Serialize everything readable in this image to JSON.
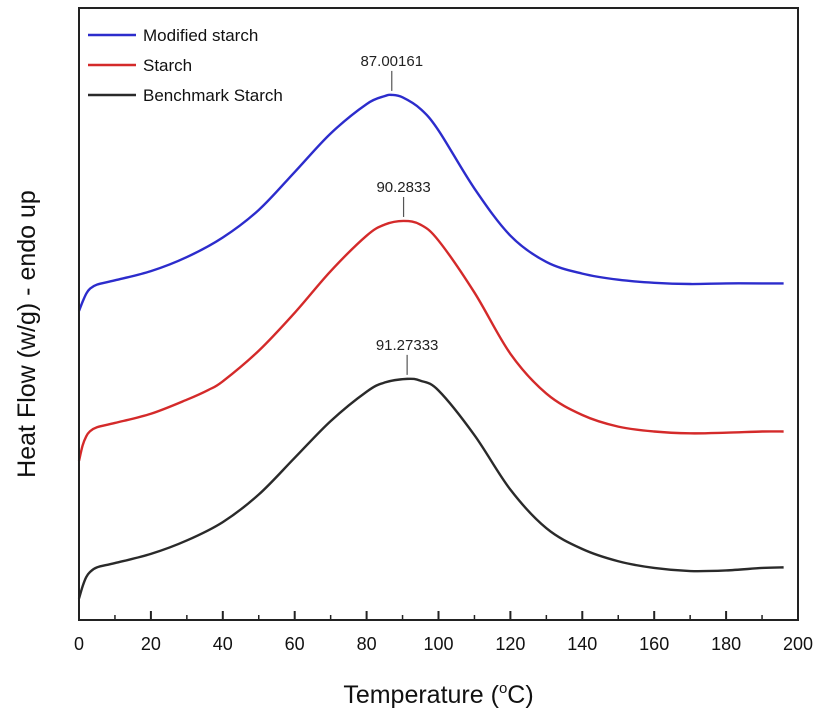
{
  "chart_data": {
    "type": "line",
    "xlabel": "Temperature (°C)",
    "xlabel_parts": {
      "main": "Temperature (",
      "sup": "o",
      "unit": "C)"
    },
    "ylabel": "Heat Flow (w/g) - endo up",
    "xlim": [
      0,
      200
    ],
    "x_ticks": [
      "0",
      "20",
      "40",
      "60",
      "80",
      "100",
      "120",
      "140",
      "160",
      "180",
      "200"
    ],
    "y_ticks": [],
    "ylim": [
      0,
      100
    ],
    "grid": false,
    "legend_position": "top-left",
    "series": [
      {
        "name": "Modified starch",
        "color": "#2c2ccc",
        "points": [
          [
            0,
            50.5
          ],
          [
            1,
            52.0
          ],
          [
            2,
            53.3
          ],
          [
            3,
            54.1
          ],
          [
            5,
            54.8
          ],
          [
            10,
            55.5
          ],
          [
            20,
            57.0
          ],
          [
            30,
            59.3
          ],
          [
            40,
            62.5
          ],
          [
            50,
            67.0
          ],
          [
            60,
            73.2
          ],
          [
            70,
            79.5
          ],
          [
            80,
            84.3
          ],
          [
            85,
            85.6
          ],
          [
            87.00161,
            85.8
          ],
          [
            90,
            85.4
          ],
          [
            95,
            83.5
          ],
          [
            100,
            80.0
          ],
          [
            110,
            70.5
          ],
          [
            120,
            62.8
          ],
          [
            130,
            58.5
          ],
          [
            140,
            56.6
          ],
          [
            150,
            55.6
          ],
          [
            160,
            55.1
          ],
          [
            170,
            54.9
          ],
          [
            180,
            55.0
          ],
          [
            190,
            55.0
          ],
          [
            196,
            55.0
          ]
        ],
        "peak": {
          "x": 87.00161,
          "label": "87.00161"
        }
      },
      {
        "name": "Starch",
        "color": "#d42a2a",
        "points": [
          [
            0,
            26.0
          ],
          [
            1,
            28.5
          ],
          [
            2,
            30.0
          ],
          [
            3,
            30.8
          ],
          [
            5,
            31.5
          ],
          [
            10,
            32.2
          ],
          [
            20,
            33.7
          ],
          [
            30,
            36.0
          ],
          [
            36,
            37.6
          ],
          [
            40,
            39.0
          ],
          [
            50,
            44.0
          ],
          [
            60,
            50.2
          ],
          [
            70,
            57.0
          ],
          [
            80,
            62.8
          ],
          [
            85,
            64.6
          ],
          [
            90.2833,
            65.2
          ],
          [
            95,
            64.6
          ],
          [
            100,
            62.0
          ],
          [
            110,
            53.5
          ],
          [
            120,
            43.5
          ],
          [
            130,
            37.0
          ],
          [
            140,
            33.5
          ],
          [
            150,
            31.6
          ],
          [
            160,
            30.8
          ],
          [
            170,
            30.5
          ],
          [
            180,
            30.6
          ],
          [
            190,
            30.8
          ],
          [
            196,
            30.8
          ]
        ],
        "peak": {
          "x": 90.2833,
          "label": "90.2833"
        }
      },
      {
        "name": "Benchmark Starch",
        "color": "#2a2a2a",
        "points": [
          [
            0,
            3.5
          ],
          [
            1,
            5.5
          ],
          [
            2,
            7.0
          ],
          [
            3,
            7.8
          ],
          [
            5,
            8.6
          ],
          [
            10,
            9.3
          ],
          [
            20,
            10.8
          ],
          [
            30,
            13.0
          ],
          [
            40,
            16.0
          ],
          [
            50,
            20.5
          ],
          [
            60,
            26.5
          ],
          [
            70,
            32.5
          ],
          [
            80,
            37.3
          ],
          [
            85,
            38.8
          ],
          [
            91.27333,
            39.4
          ],
          [
            95,
            39.1
          ],
          [
            100,
            37.5
          ],
          [
            110,
            30.2
          ],
          [
            120,
            21.3
          ],
          [
            130,
            15.0
          ],
          [
            140,
            11.6
          ],
          [
            150,
            9.6
          ],
          [
            160,
            8.5
          ],
          [
            170,
            8.0
          ],
          [
            180,
            8.1
          ],
          [
            190,
            8.5
          ],
          [
            196,
            8.6
          ]
        ],
        "peak": {
          "x": 91.27333,
          "label": "91.27333"
        }
      }
    ]
  }
}
